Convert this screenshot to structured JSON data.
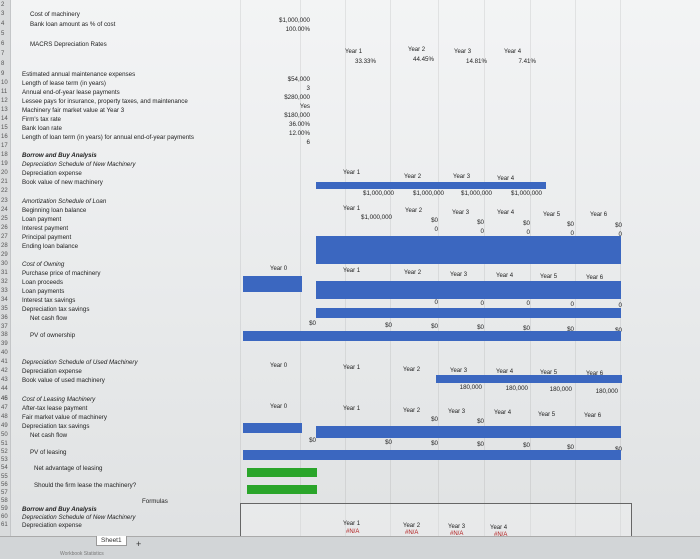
{
  "row_numbers": [
    "2",
    "3",
    "4",
    "5",
    "6",
    "7",
    "8",
    "9",
    "10",
    "11",
    "12",
    "13",
    "14",
    "15",
    "16",
    "17",
    "18",
    "19",
    "20",
    "21",
    "22",
    "23",
    "24",
    "25",
    "26",
    "27",
    "28",
    "29",
    "30",
    "31",
    "32",
    "33",
    "34",
    "35",
    "36",
    "37",
    "38",
    "39",
    "40",
    "41",
    "42",
    "43",
    "44",
    "45",
    "46",
    "47",
    "48",
    "49",
    "50",
    "51",
    "52",
    "53",
    "54",
    "55",
    "56",
    "57",
    "58",
    "59",
    "60",
    "61"
  ],
  "labels": {
    "r3": "Cost of machinery",
    "r4": "Bank loan amount as % of cost",
    "r6": "MACRS Depreciation Rates",
    "r9": "Estimated annual maintenance expenses",
    "r10": "Length of lease term (in years)",
    "r11": "Annual end-of-year lease payments",
    "r12": "Lessee pays for insurance, property taxes, and maintenance",
    "r13": "Machinery fair market value at Year 3",
    "r14": "Firm's tax rate",
    "r15": "Bank loan rate",
    "r16": "Length of loan term (in years) for annual end-of-year payments",
    "r18": "Borrow and Buy Analysis",
    "r19": "Depreciation Schedule of New Machinery",
    "r20": "Depreciation expense",
    "r21": "Book value of new machinery",
    "r23": "Amortization Schedule of Loan",
    "r24": "Beginning loan balance",
    "r25": "Loan payment",
    "r26": "Interest payment",
    "r27": "Principal payment",
    "r28": "Ending loan balance",
    "r30": "Cost of Owning",
    "r31": "Purchase price of machinery",
    "r32": "Loan proceeds",
    "r33": "Loan payments",
    "r34": "Interest tax savings",
    "r35": "Depreciation tax savings",
    "r36": "Net cash flow",
    "r38": "PV of ownership",
    "r41": "Depreciation Schedule of Used Machinery",
    "r42": "Depreciation expense",
    "r43": "Book value of used machinery",
    "r46": "Cost of Leasing Machinery",
    "r47": "After-tax lease payment",
    "r48": "Fair market value of machinery",
    "r49": "Depreciation tax savings",
    "r50": "Net cash flow",
    "r52": "PV of leasing",
    "r54": "Net advantage of leasing",
    "r56": "Should the firm lease the machinery?",
    "r58": "Formulas",
    "r59": "Borrow and Buy Analysis",
    "r60": "Depreciation Schedule of New Machinery",
    "r61": "Depreciation expense"
  },
  "inputs": {
    "cost": "$1,000,000",
    "loan_pct": "100.00%",
    "maintenance": "$54,000",
    "lease_term": "3",
    "lease_payment": "$280,000",
    "lessee_pays": "Yes",
    "fmv": "$180,000",
    "tax_rate": "36.00%",
    "loan_rate": "12.00%",
    "loan_term": "6"
  },
  "macrs": {
    "years": [
      "Year 1",
      "Year 2",
      "Year 3",
      "Year 4"
    ],
    "rates": [
      "33.33%",
      "44.45%",
      "14.81%",
      "7.41%"
    ]
  },
  "new_dep": {
    "years": [
      "Year 1",
      "Year 2",
      "Year 3",
      "Year 4"
    ],
    "book": [
      "$1,000,000",
      "$1,000,000",
      "$1,000,000",
      "$1,000,000"
    ]
  },
  "loan": {
    "years": [
      "Year 1",
      "Year 2",
      "Year 3",
      "Year 4",
      "Year 5",
      "Year 6"
    ],
    "begin": "$1,000,000",
    "payment": [
      "$0",
      "$0",
      "$0",
      "$0",
      "$0"
    ],
    "interest": [
      "0",
      "0",
      "0",
      "0",
      "0"
    ]
  },
  "owning": {
    "years": [
      "Year 0",
      "Year 1",
      "Year 2",
      "Year 3",
      "Year 4",
      "Year 5",
      "Year 6"
    ],
    "zeros": [
      "0",
      "0",
      "0",
      "0",
      "0"
    ],
    "net": [
      "$0",
      "$0",
      "$0",
      "$0",
      "$0",
      "$0",
      "$0"
    ]
  },
  "used_dep": {
    "years": [
      "Year 0",
      "Year 1",
      "Year 2",
      "Year 3",
      "Year 4",
      "Year 5",
      "Year 6"
    ],
    "book": [
      "180,000",
      "180,000",
      "180,000",
      "180,000"
    ]
  },
  "leasing": {
    "years": [
      "Year 0",
      "Year 1",
      "Year 2",
      "Year 3",
      "Year 4",
      "Year 5",
      "Year 6"
    ],
    "after_tax": [
      "$0",
      "$0"
    ],
    "net": [
      "$0",
      "$0",
      "$0",
      "$0",
      "$0",
      "$0",
      "$0"
    ]
  },
  "formulas": {
    "years": [
      "Year 1",
      "Year 2",
      "Year 3",
      "Year 4"
    ],
    "vals": [
      "#N/A",
      "#N/A",
      "#N/A",
      "#N/A"
    ]
  },
  "tabs": {
    "first": "Workbook Statistics",
    "sheet": "Sheet1",
    "add": "+"
  },
  "colors": {
    "band": "#3b67c0",
    "green": "#2aa52a"
  }
}
